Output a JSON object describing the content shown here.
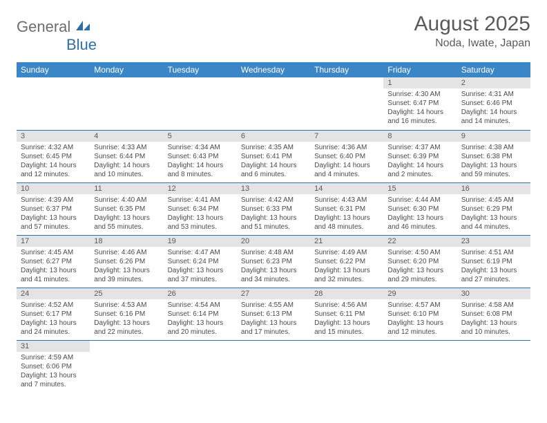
{
  "logo": {
    "text1": "General",
    "text2": "Blue"
  },
  "title": "August 2025",
  "location": "Noda, Iwate, Japan",
  "colors": {
    "header_bg": "#3b86c6",
    "header_text": "#ffffff",
    "daynum_bg": "#e4e4e4",
    "border": "#2f6fa8",
    "body_text": "#4a4a4a",
    "title_text": "#5a5a5a",
    "logo_gray": "#6d6d6d",
    "logo_blue": "#2f6fa8"
  },
  "dayHeaders": [
    "Sunday",
    "Monday",
    "Tuesday",
    "Wednesday",
    "Thursday",
    "Friday",
    "Saturday"
  ],
  "weeks": [
    [
      null,
      null,
      null,
      null,
      null,
      {
        "n": "1",
        "sunrise": "4:30 AM",
        "sunset": "6:47 PM",
        "daylight": "14 hours and 16 minutes."
      },
      {
        "n": "2",
        "sunrise": "4:31 AM",
        "sunset": "6:46 PM",
        "daylight": "14 hours and 14 minutes."
      }
    ],
    [
      {
        "n": "3",
        "sunrise": "4:32 AM",
        "sunset": "6:45 PM",
        "daylight": "14 hours and 12 minutes."
      },
      {
        "n": "4",
        "sunrise": "4:33 AM",
        "sunset": "6:44 PM",
        "daylight": "14 hours and 10 minutes."
      },
      {
        "n": "5",
        "sunrise": "4:34 AM",
        "sunset": "6:43 PM",
        "daylight": "14 hours and 8 minutes."
      },
      {
        "n": "6",
        "sunrise": "4:35 AM",
        "sunset": "6:41 PM",
        "daylight": "14 hours and 6 minutes."
      },
      {
        "n": "7",
        "sunrise": "4:36 AM",
        "sunset": "6:40 PM",
        "daylight": "14 hours and 4 minutes."
      },
      {
        "n": "8",
        "sunrise": "4:37 AM",
        "sunset": "6:39 PM",
        "daylight": "14 hours and 2 minutes."
      },
      {
        "n": "9",
        "sunrise": "4:38 AM",
        "sunset": "6:38 PM",
        "daylight": "13 hours and 59 minutes."
      }
    ],
    [
      {
        "n": "10",
        "sunrise": "4:39 AM",
        "sunset": "6:37 PM",
        "daylight": "13 hours and 57 minutes."
      },
      {
        "n": "11",
        "sunrise": "4:40 AM",
        "sunset": "6:35 PM",
        "daylight": "13 hours and 55 minutes."
      },
      {
        "n": "12",
        "sunrise": "4:41 AM",
        "sunset": "6:34 PM",
        "daylight": "13 hours and 53 minutes."
      },
      {
        "n": "13",
        "sunrise": "4:42 AM",
        "sunset": "6:33 PM",
        "daylight": "13 hours and 51 minutes."
      },
      {
        "n": "14",
        "sunrise": "4:43 AM",
        "sunset": "6:31 PM",
        "daylight": "13 hours and 48 minutes."
      },
      {
        "n": "15",
        "sunrise": "4:44 AM",
        "sunset": "6:30 PM",
        "daylight": "13 hours and 46 minutes."
      },
      {
        "n": "16",
        "sunrise": "4:45 AM",
        "sunset": "6:29 PM",
        "daylight": "13 hours and 44 minutes."
      }
    ],
    [
      {
        "n": "17",
        "sunrise": "4:45 AM",
        "sunset": "6:27 PM",
        "daylight": "13 hours and 41 minutes."
      },
      {
        "n": "18",
        "sunrise": "4:46 AM",
        "sunset": "6:26 PM",
        "daylight": "13 hours and 39 minutes."
      },
      {
        "n": "19",
        "sunrise": "4:47 AM",
        "sunset": "6:24 PM",
        "daylight": "13 hours and 37 minutes."
      },
      {
        "n": "20",
        "sunrise": "4:48 AM",
        "sunset": "6:23 PM",
        "daylight": "13 hours and 34 minutes."
      },
      {
        "n": "21",
        "sunrise": "4:49 AM",
        "sunset": "6:22 PM",
        "daylight": "13 hours and 32 minutes."
      },
      {
        "n": "22",
        "sunrise": "4:50 AM",
        "sunset": "6:20 PM",
        "daylight": "13 hours and 29 minutes."
      },
      {
        "n": "23",
        "sunrise": "4:51 AM",
        "sunset": "6:19 PM",
        "daylight": "13 hours and 27 minutes."
      }
    ],
    [
      {
        "n": "24",
        "sunrise": "4:52 AM",
        "sunset": "6:17 PM",
        "daylight": "13 hours and 24 minutes."
      },
      {
        "n": "25",
        "sunrise": "4:53 AM",
        "sunset": "6:16 PM",
        "daylight": "13 hours and 22 minutes."
      },
      {
        "n": "26",
        "sunrise": "4:54 AM",
        "sunset": "6:14 PM",
        "daylight": "13 hours and 20 minutes."
      },
      {
        "n": "27",
        "sunrise": "4:55 AM",
        "sunset": "6:13 PM",
        "daylight": "13 hours and 17 minutes."
      },
      {
        "n": "28",
        "sunrise": "4:56 AM",
        "sunset": "6:11 PM",
        "daylight": "13 hours and 15 minutes."
      },
      {
        "n": "29",
        "sunrise": "4:57 AM",
        "sunset": "6:10 PM",
        "daylight": "13 hours and 12 minutes."
      },
      {
        "n": "30",
        "sunrise": "4:58 AM",
        "sunset": "6:08 PM",
        "daylight": "13 hours and 10 minutes."
      }
    ],
    [
      {
        "n": "31",
        "sunrise": "4:59 AM",
        "sunset": "6:06 PM",
        "daylight": "13 hours and 7 minutes."
      },
      null,
      null,
      null,
      null,
      null,
      null
    ]
  ],
  "labels": {
    "sunrise": "Sunrise: ",
    "sunset": "Sunset: ",
    "daylight": "Daylight: "
  }
}
